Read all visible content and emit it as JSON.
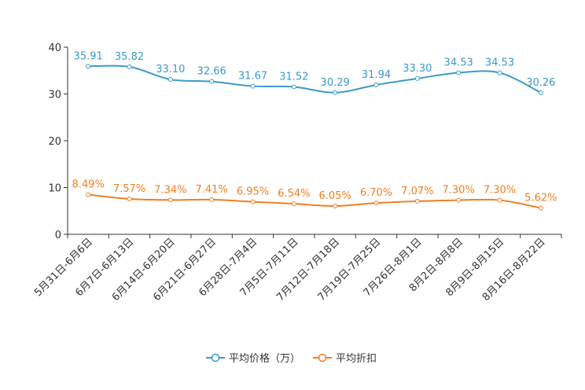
{
  "chart_data": {
    "type": "line",
    "title": "",
    "xlabel": "",
    "ylabel": "",
    "ylim": [
      0,
      40
    ],
    "yticks": [
      0,
      10,
      20,
      30,
      40
    ],
    "grid": false,
    "legend_position": "bottom",
    "categories": [
      "5月31日-6月6日",
      "6月7日-6月13日",
      "6月14日-6月20日",
      "6月21日-6月27日",
      "6月28日-7月4日",
      "7月5日-7月11日",
      "7月12日-7月18日",
      "7月19日-7月25日",
      "7月26日-8月1日",
      "8月2日-8月8日",
      "8月9日-8月15日",
      "8月16日-8月22日"
    ],
    "series": [
      {
        "name": "平均价格（万）",
        "color": "#3b9ac9",
        "values": [
          35.91,
          35.82,
          33.1,
          32.66,
          31.67,
          31.52,
          30.29,
          31.94,
          33.3,
          34.53,
          34.53,
          30.26
        ],
        "labels": [
          "35.91",
          "35.82",
          "33.10",
          "32.66",
          "31.67",
          "31.52",
          "30.29",
          "31.94",
          "33.30",
          "34.53",
          "34.53",
          "30.26"
        ]
      },
      {
        "name": "平均折扣",
        "color": "#f07f22",
        "values": [
          8.49,
          7.57,
          7.34,
          7.41,
          6.95,
          6.54,
          6.05,
          6.7,
          7.07,
          7.3,
          7.3,
          5.62
        ],
        "labels": [
          "8.49%",
          "7.57%",
          "7.34%",
          "7.41%",
          "6.95%",
          "6.54%",
          "6.05%",
          "6.70%",
          "7.07%",
          "7.30%",
          "7.30%",
          "5.62%"
        ]
      }
    ]
  }
}
